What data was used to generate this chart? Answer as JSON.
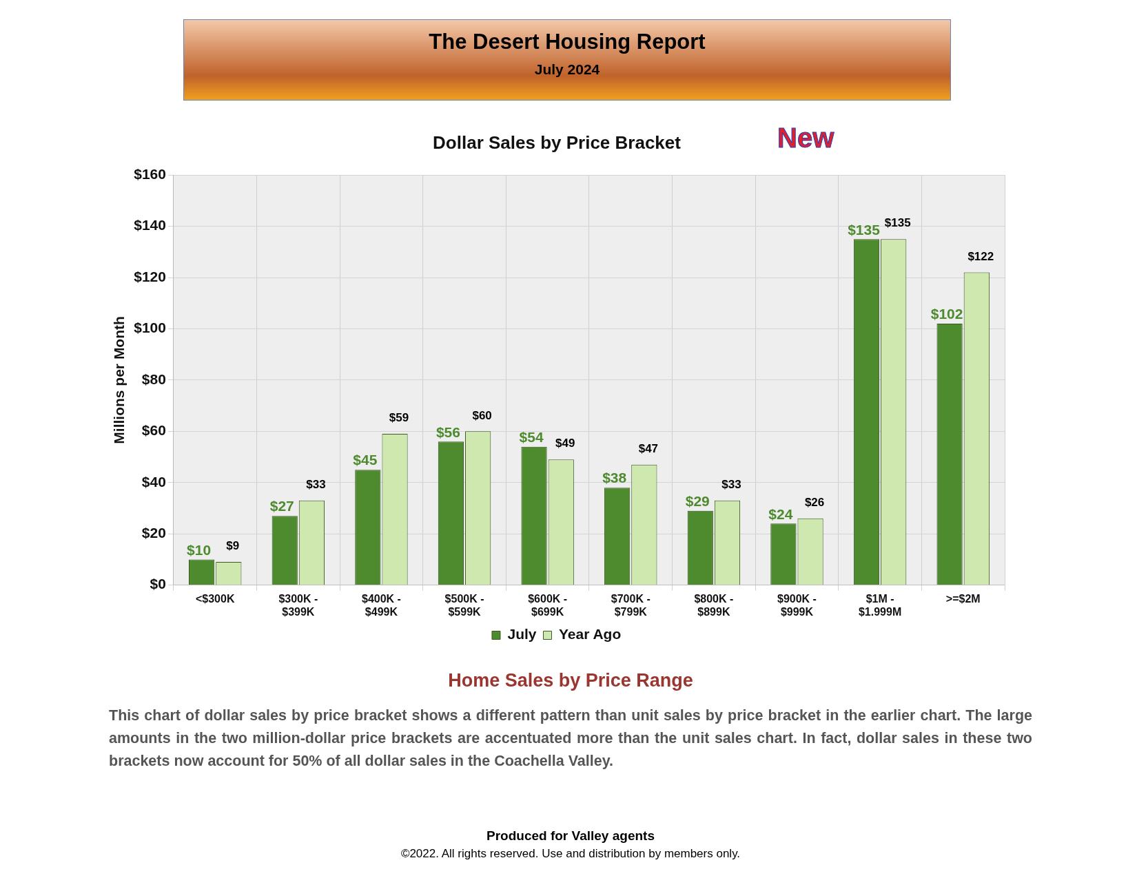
{
  "chart_data": {
    "type": "bar",
    "title": "Dollar Sales by Price Bracket",
    "ylabel": "Millions per Month",
    "categories": [
      "<$300K",
      "$300K - $399K",
      "$400K - $499K",
      "$500K - $599K",
      "$600K - $699K",
      "$700K - $799K",
      "$800K - $899K",
      "$900K - $999K",
      "$1M - $1.999M",
      ">=$2M"
    ],
    "series": [
      {
        "name": "July",
        "color": "#4e8a2e",
        "values": [
          10,
          27,
          45,
          56,
          54,
          38,
          29,
          24,
          135,
          102
        ],
        "value_labels": [
          "$10",
          "$27",
          "$45",
          "$56",
          "$54",
          "$38",
          "$29",
          "$24",
          "$135",
          "$102"
        ]
      },
      {
        "name": "Year Ago",
        "color": "#cfe8b0",
        "values": [
          9,
          33,
          59,
          60,
          49,
          47,
          33,
          26,
          135,
          122
        ],
        "value_labels": [
          "$9",
          "$33",
          "$59",
          "$60",
          "$49",
          "$47",
          "$33",
          "$26",
          "$135",
          "$122"
        ]
      }
    ],
    "ylim": [
      0,
      160
    ],
    "yticks": [
      {
        "value": 0,
        "label": "$0"
      },
      {
        "value": 20,
        "label": "$20"
      },
      {
        "value": 40,
        "label": "$40"
      },
      {
        "value": 60,
        "label": "$60"
      },
      {
        "value": 80,
        "label": "$80"
      },
      {
        "value": 100,
        "label": "$100"
      },
      {
        "value": 120,
        "label": "$120"
      },
      {
        "value": 140,
        "label": "$140"
      },
      {
        "value": 160,
        "label": "$160"
      }
    ],
    "grid": true,
    "legend": "bottom",
    "annotations": [
      "The Desert Housing Report",
      "July 2024",
      "New",
      "Home Sales by Price Range",
      "This chart of dollar sales by price bracket shows a different pattern than unit sales by price bracket in the earlier chart. The large amounts in the two million-dollar price brackets are accentuated more than the unit sales chart. In fact, dollar sales in these two brackets now account for 50% of all dollar sales in the Coachella Valley.",
      "Produced for Valley agents",
      "©2022. All rights reserved.  Use and distribution by members only."
    ]
  }
}
